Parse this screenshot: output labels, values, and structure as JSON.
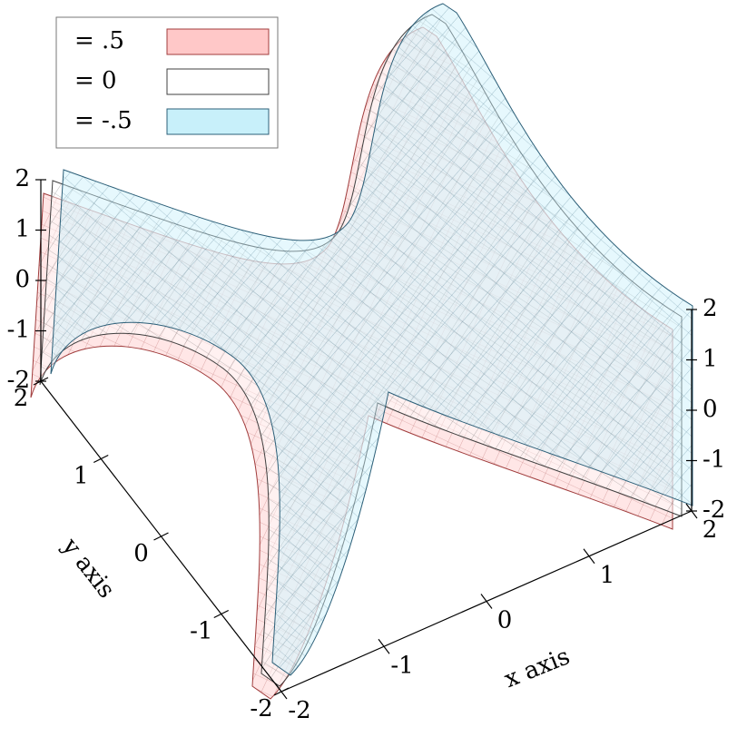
{
  "chart_data": {
    "type": "isosurface3d",
    "x_label": "x axis",
    "y_label": "y axis",
    "xlim": [
      -2,
      2
    ],
    "ylim": [
      -2,
      2
    ],
    "zlim": [
      -2,
      2
    ],
    "xticks": [
      -2,
      -1,
      0,
      1,
      2
    ],
    "yticks": [
      -2,
      -1,
      0,
      1,
      2
    ],
    "zticks": [
      -2,
      -1,
      0,
      1,
      2
    ],
    "legend": "upper left",
    "series": [
      {
        "name": "= .5",
        "color": "#ffc8c8",
        "edgecolor": "#a03c3c"
      },
      {
        "name": "= 0",
        "color": "#ffffff",
        "edgecolor": "#404040"
      },
      {
        "name": "= -.5",
        "color": "#c8f0fa",
        "edgecolor": "#2c5f78"
      }
    ]
  }
}
